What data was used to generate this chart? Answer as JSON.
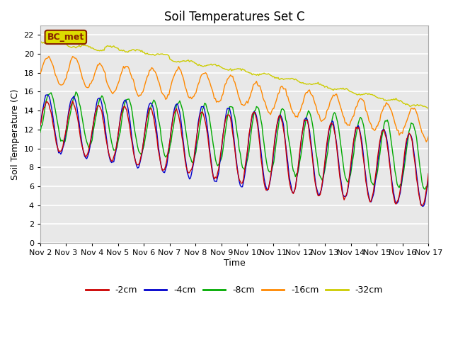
{
  "title": "Soil Temperatures Set C",
  "xlabel": "Time",
  "ylabel": "Soil Temperature (C)",
  "ylim": [
    0,
    23
  ],
  "yticks": [
    0,
    2,
    4,
    6,
    8,
    10,
    12,
    14,
    16,
    18,
    20,
    22
  ],
  "xlim_days": [
    0,
    15
  ],
  "xtick_labels": [
    "Nov 2",
    "Nov 3",
    "Nov 4",
    "Nov 5",
    "Nov 6",
    "Nov 7",
    "Nov 8",
    "Nov 9",
    "Nov 10",
    "Nov 11",
    "Nov 12",
    "Nov 13",
    "Nov 14",
    "Nov 15",
    "Nov 16",
    "Nov 17"
  ],
  "series_colors": [
    "#cc0000",
    "#0000cc",
    "#00aa00",
    "#ff8800",
    "#cccc00"
  ],
  "series_labels": [
    "-2cm",
    "-4cm",
    "-8cm",
    "-16cm",
    "-32cm"
  ],
  "plot_bg_color": "#e8e8e8",
  "grid_color": "#ffffff",
  "annotation_text": "BC_met",
  "annotation_bg": "#dddd00",
  "annotation_border": "#882200",
  "title_fontsize": 12,
  "label_fontsize": 9,
  "tick_fontsize": 8,
  "legend_fontsize": 9
}
